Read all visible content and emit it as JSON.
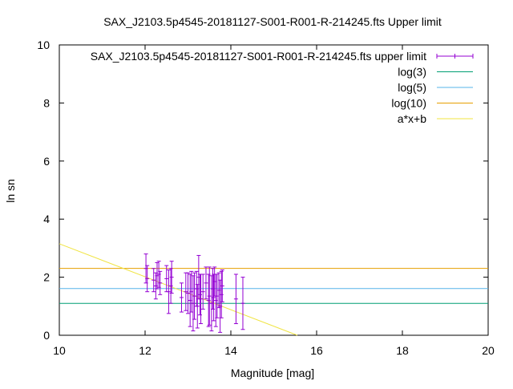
{
  "chart_data": {
    "type": "scatter",
    "title": "SAX_J2103.5p4545-20181127-S001-R001-R-214245.fts Upper limit",
    "xlabel": "Magnitude [mag]",
    "ylabel": "ln sn",
    "xlim": [
      10,
      20
    ],
    "ylim": [
      0,
      10
    ],
    "x_ticks": [
      "10",
      "12",
      "14",
      "16",
      "18",
      "20"
    ],
    "y_ticks": [
      "0",
      "2",
      "4",
      "6",
      "8",
      "10"
    ],
    "grid": false,
    "legend_position": "top-right",
    "legend": [
      {
        "label": "SAX_J2103.5p4545-20181127-S001-R001-R-214245.fts upper limit",
        "color": "#9400d3",
        "style": "errorbar"
      },
      {
        "label": "log(3)",
        "color": "#009e73",
        "style": "line"
      },
      {
        "label": "log(5)",
        "color": "#56b4e9",
        "style": "line"
      },
      {
        "label": "log(10)",
        "color": "#e69f00",
        "style": "line"
      },
      {
        "label": "a*x+b",
        "color": "#f0e442",
        "style": "line"
      }
    ],
    "hlines": [
      {
        "name": "log(3)",
        "y": 1.0986,
        "color": "#009e73"
      },
      {
        "name": "log(5)",
        "y": 1.6094,
        "color": "#56b4e9"
      },
      {
        "name": "log(10)",
        "y": 2.3026,
        "color": "#e69f00"
      }
    ],
    "fit_line": {
      "name": "a*x+b",
      "x": [
        10,
        15.55
      ],
      "y": [
        3.15,
        0.0
      ],
      "color": "#f0e442"
    },
    "points": [
      {
        "x": 12.02,
        "y": 2.3,
        "err": 0.5
      },
      {
        "x": 12.05,
        "y": 1.95,
        "err": 0.45
      },
      {
        "x": 12.2,
        "y": 1.9,
        "err": 0.4
      },
      {
        "x": 12.25,
        "y": 1.7,
        "err": 0.45
      },
      {
        "x": 12.28,
        "y": 2.05,
        "err": 0.45
      },
      {
        "x": 12.32,
        "y": 2.1,
        "err": 0.45
      },
      {
        "x": 12.35,
        "y": 1.8,
        "err": 0.4
      },
      {
        "x": 12.5,
        "y": 1.95,
        "err": 0.45
      },
      {
        "x": 12.55,
        "y": 1.5,
        "err": 0.75
      },
      {
        "x": 12.6,
        "y": 1.7,
        "err": 0.6
      },
      {
        "x": 12.62,
        "y": 2.0,
        "err": 0.55
      },
      {
        "x": 12.85,
        "y": 1.3,
        "err": 0.5
      },
      {
        "x": 12.95,
        "y": 1.5,
        "err": 0.65
      },
      {
        "x": 13.0,
        "y": 1.45,
        "err": 0.7
      },
      {
        "x": 13.05,
        "y": 1.2,
        "err": 0.9
      },
      {
        "x": 13.08,
        "y": 1.5,
        "err": 0.7
      },
      {
        "x": 13.12,
        "y": 1.1,
        "err": 0.95
      },
      {
        "x": 13.15,
        "y": 1.35,
        "err": 0.8
      },
      {
        "x": 13.2,
        "y": 1.6,
        "err": 0.6
      },
      {
        "x": 13.22,
        "y": 1.0,
        "err": 0.75
      },
      {
        "x": 13.25,
        "y": 2.0,
        "err": 0.75
      },
      {
        "x": 13.28,
        "y": 1.4,
        "err": 0.7
      },
      {
        "x": 13.3,
        "y": 1.25,
        "err": 0.85
      },
      {
        "x": 13.35,
        "y": 1.5,
        "err": 0.6
      },
      {
        "x": 13.42,
        "y": 1.8,
        "err": 0.55
      },
      {
        "x": 13.48,
        "y": 1.2,
        "err": 0.9
      },
      {
        "x": 13.5,
        "y": 1.35,
        "err": 1.0
      },
      {
        "x": 13.55,
        "y": 1.1,
        "err": 0.95
      },
      {
        "x": 13.58,
        "y": 1.6,
        "err": 0.7
      },
      {
        "x": 13.6,
        "y": 1.3,
        "err": 0.8
      },
      {
        "x": 13.62,
        "y": 1.85,
        "err": 0.5
      },
      {
        "x": 13.65,
        "y": 1.2,
        "err": 0.9
      },
      {
        "x": 13.68,
        "y": 1.35,
        "err": 0.75
      },
      {
        "x": 13.72,
        "y": 1.55,
        "err": 0.6
      },
      {
        "x": 13.75,
        "y": 1.0,
        "err": 0.9
      },
      {
        "x": 13.78,
        "y": 1.4,
        "err": 0.8
      },
      {
        "x": 13.8,
        "y": 1.7,
        "err": 0.55
      },
      {
        "x": 14.12,
        "y": 1.25,
        "err": 0.85
      },
      {
        "x": 14.28,
        "y": 1.1,
        "err": 0.9
      }
    ],
    "colors": {
      "points": "#9400d3",
      "axes": "#000000"
    }
  }
}
